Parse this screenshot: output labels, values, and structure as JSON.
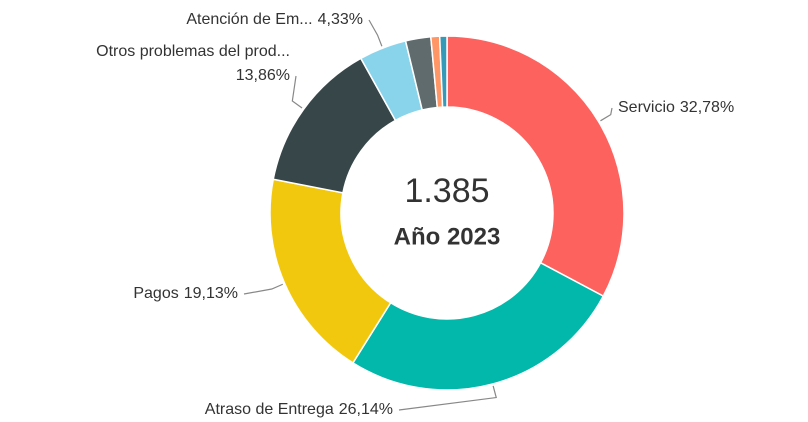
{
  "chart_data": {
    "type": "donut",
    "categories": [
      "Servicio",
      "Atraso de Entrega",
      "Pagos",
      "Otros problemas del prod...",
      "Atención de Em...",
      null,
      null,
      null
    ],
    "values": [
      32.78,
      26.14,
      19.13,
      13.86,
      4.33,
      2.3,
      0.8,
      0.66
    ],
    "value_labels": [
      "32,78%",
      "26,14%",
      "19,13%",
      "13,86%",
      "4,33%",
      null,
      null,
      null
    ],
    "colors": [
      "#fd625e",
      "#01b8aa",
      "#f2c80f",
      "#374649",
      "#8ad4eb",
      "#5f6b6d",
      "#fe9666",
      "#3599b8"
    ],
    "center_total": {
      "value": 1385,
      "label": "1.385"
    },
    "center_subtitle": "Año 2023"
  }
}
